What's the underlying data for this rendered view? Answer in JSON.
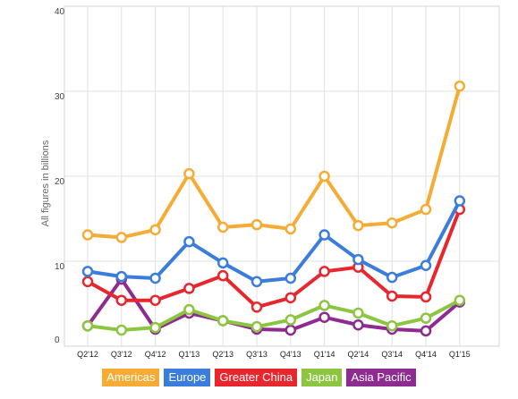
{
  "chart_data": {
    "type": "line",
    "title": "",
    "xlabel": "",
    "ylabel": "All figures in billions",
    "categories": [
      "Q2'12",
      "Q3'12",
      "Q4'12",
      "Q1'13",
      "Q2'13",
      "Q3'13",
      "Q4'13",
      "Q1'14",
      "Q2'14",
      "Q3'14",
      "Q4'14",
      "Q1'15"
    ],
    "ylim": [
      0,
      40
    ],
    "yticks": [
      "0",
      "10",
      "20",
      "30",
      "40"
    ],
    "grid": true,
    "legend_position": "bottom",
    "series": [
      {
        "name": "Americas",
        "color": "#f6ac34",
        "values": [
          13.1,
          12.8,
          13.7,
          20.3,
          14.0,
          14.3,
          13.8,
          20.0,
          14.2,
          14.5,
          16.1,
          30.6
        ]
      },
      {
        "name": "Europe",
        "color": "#3b7ddd",
        "values": [
          8.8,
          8.2,
          8.0,
          12.3,
          9.8,
          7.6,
          8.0,
          13.1,
          10.2,
          8.1,
          9.5,
          17.1
        ]
      },
      {
        "name": "Greater China",
        "color": "#e8262d",
        "values": [
          7.6,
          5.4,
          5.4,
          6.8,
          8.3,
          4.6,
          5.7,
          8.8,
          9.3,
          5.9,
          5.8,
          16.1
        ]
      },
      {
        "name": "Japan",
        "color": "#8cc540",
        "values": [
          2.4,
          1.9,
          2.2,
          4.3,
          3.0,
          2.3,
          3.1,
          4.8,
          3.9,
          2.4,
          3.3,
          5.4
        ]
      },
      {
        "name": "Asia Pacific",
        "color": "#8e2b90",
        "values": [
          2.4,
          7.9,
          2.0,
          3.9,
          3.0,
          2.0,
          1.9,
          3.4,
          2.5,
          2.0,
          1.8,
          5.2
        ]
      }
    ]
  }
}
